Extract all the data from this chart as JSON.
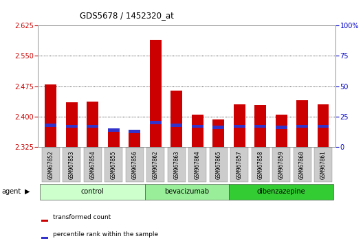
{
  "title": "GDS5678 / 1452320_at",
  "samples": [
    "GSM967852",
    "GSM967853",
    "GSM967854",
    "GSM967855",
    "GSM967856",
    "GSM967862",
    "GSM967863",
    "GSM967864",
    "GSM967865",
    "GSM967857",
    "GSM967858",
    "GSM967859",
    "GSM967860",
    "GSM967861"
  ],
  "transformed_count": [
    2.48,
    2.435,
    2.438,
    2.37,
    2.362,
    2.59,
    2.465,
    2.405,
    2.393,
    2.43,
    2.428,
    2.405,
    2.44,
    2.43
  ],
  "percentile_rank": [
    18,
    17,
    17,
    14,
    13,
    20,
    18,
    17,
    16,
    17,
    17,
    16,
    17,
    17
  ],
  "y_min": 2.325,
  "y_max": 2.625,
  "y_ticks": [
    2.325,
    2.4,
    2.475,
    2.55,
    2.625
  ],
  "right_y_ticks": [
    0,
    25,
    50,
    75,
    100
  ],
  "right_y_labels": [
    "0",
    "25",
    "50",
    "75",
    "100%"
  ],
  "bar_color": "#cc0000",
  "percentile_color": "#3333cc",
  "groups": [
    {
      "label": "control",
      "start": 0,
      "end": 5,
      "color": "#ccffcc"
    },
    {
      "label": "bevacizumab",
      "start": 5,
      "end": 9,
      "color": "#99ee99"
    },
    {
      "label": "dibenzazepine",
      "start": 9,
      "end": 14,
      "color": "#33cc33"
    }
  ],
  "agent_label": "agent",
  "legend_items": [
    {
      "label": "transformed count",
      "color": "#cc0000"
    },
    {
      "label": "percentile rank within the sample",
      "color": "#3333cc"
    }
  ],
  "background_color": "#ffffff",
  "plot_bg_color": "#ffffff",
  "bar_width": 0.55,
  "grid_color": "#000000",
  "tick_label_color_left": "#cc0000",
  "tick_label_color_right": "#0000cc",
  "xtick_bg_color": "#cccccc"
}
